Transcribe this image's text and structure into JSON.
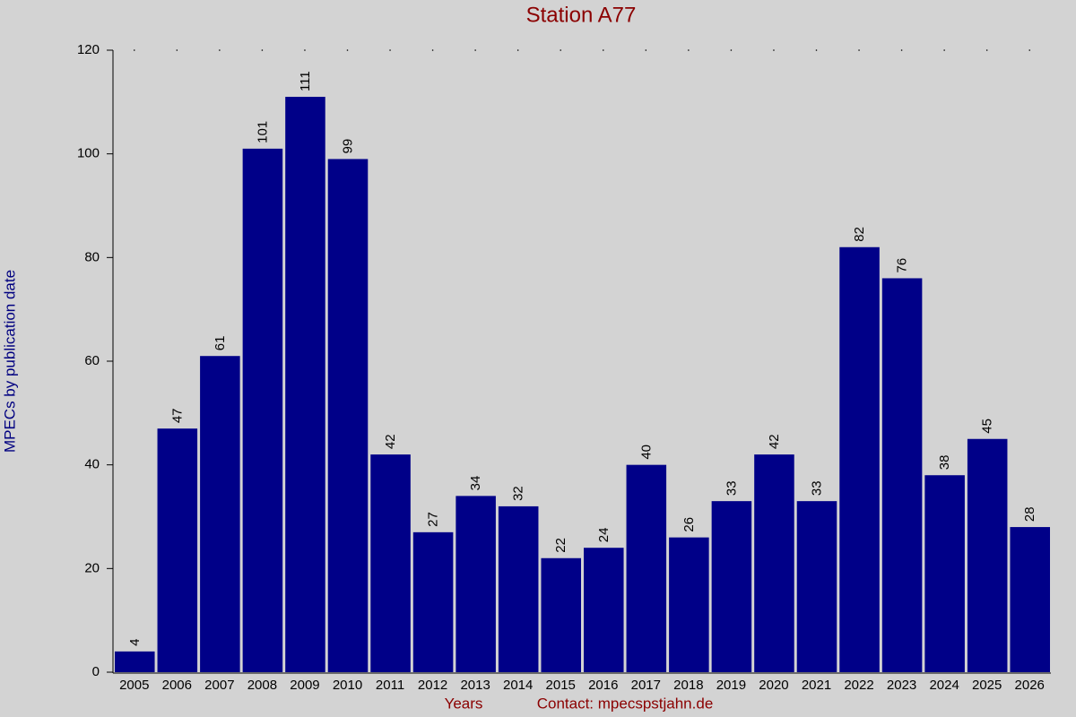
{
  "chart_data": {
    "type": "bar",
    "title": "Station A77",
    "y_label": "MPECs by publication date",
    "x_label": "Years",
    "contact": "Contact: mpecspstjahn.de",
    "categories": [
      "2005",
      "2006",
      "2007",
      "2008",
      "2009",
      "2010",
      "2011",
      "2012",
      "2013",
      "2014",
      "2015",
      "2016",
      "2017",
      "2018",
      "2019",
      "2020",
      "2021",
      "2022",
      "2023",
      "2024",
      "2025",
      "2026"
    ],
    "values": [
      4,
      47,
      61,
      101,
      111,
      99,
      42,
      27,
      34,
      32,
      22,
      24,
      40,
      26,
      33,
      42,
      33,
      82,
      76,
      38,
      45,
      28
    ],
    "color": "#000088",
    "ylim": [
      0,
      120
    ],
    "yticks": [
      0,
      20,
      40,
      60,
      80,
      100,
      120
    ]
  }
}
